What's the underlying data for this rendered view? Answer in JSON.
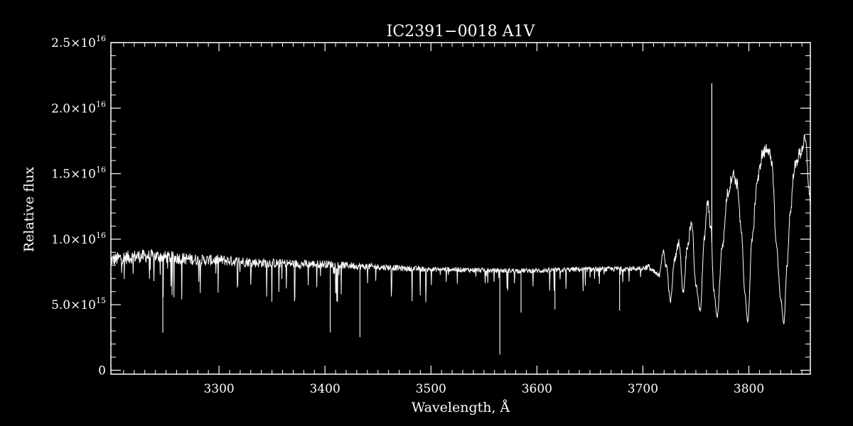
{
  "chart_data": {
    "type": "line",
    "title": "IC2391−0018  A1V",
    "xlabel": "Wavelength, Å",
    "ylabel": "Relative flux",
    "xlim": [
      3198,
      3858
    ],
    "ylim": [
      -300000000000000.0,
      2.5e+16
    ],
    "grid": false,
    "colors": {
      "background": "#000000",
      "foreground": "#ffffff",
      "series": "#ffffff"
    },
    "x_ticks": [
      {
        "value": 3300,
        "label": "3300"
      },
      {
        "value": 3400,
        "label": "3400"
      },
      {
        "value": 3500,
        "label": "3500"
      },
      {
        "value": 3600,
        "label": "3600"
      },
      {
        "value": 3700,
        "label": "3700"
      },
      {
        "value": 3800,
        "label": "3800"
      }
    ],
    "y_ticks": [
      {
        "value": 0,
        "mantissa": "0",
        "exponent": ""
      },
      {
        "value": 5000000000000000.0,
        "mantissa": "5.0×10",
        "exponent": "15"
      },
      {
        "value": 1e+16,
        "mantissa": "1.0×10",
        "exponent": "16"
      },
      {
        "value": 1.5e+16,
        "mantissa": "1.5×10",
        "exponent": "16"
      },
      {
        "value": 2e+16,
        "mantissa": "2.0×10",
        "exponent": "16"
      },
      {
        "value": 2.5e+16,
        "mantissa": "2.5×10",
        "exponent": "16"
      }
    ],
    "series": [
      {
        "x": [
          3198,
          3210,
          3225,
          3240,
          3255,
          3270,
          3285,
          3300,
          3320,
          3340,
          3360,
          3380,
          3400,
          3420,
          3440,
          3460,
          3480,
          3500,
          3520,
          3540,
          3560,
          3580,
          3600,
          3620,
          3640,
          3660,
          3680,
          3690,
          3700,
          3705,
          3710,
          3715,
          3719,
          3722,
          3726,
          3730,
          3734,
          3738,
          3742,
          3746,
          3750,
          3754,
          3758,
          3761,
          3764,
          3767,
          3770,
          3775,
          3780,
          3785,
          3789,
          3793,
          3796,
          3799,
          3803,
          3808,
          3813,
          3818,
          3822,
          3826,
          3830,
          3833,
          3836,
          3839,
          3843,
          3848,
          3853,
          3858
        ],
        "y": [
          8400000000000000.0,
          8600000000000000.0,
          8700000000000000.0,
          8700000000000000.0,
          8600000000000000.0,
          8500000000000000.0,
          8400000000000000.0,
          8400000000000000.0,
          8300000000000000.0,
          8200000000000000.0,
          8150000000000000.0,
          8100000000000000.0,
          8100000000000000.0,
          8000000000000000.0,
          7900000000000000.0,
          7850000000000000.0,
          7750000000000000.0,
          7700000000000000.0,
          7700000000000000.0,
          7650000000000000.0,
          7600000000000000.0,
          7600000000000000.0,
          7600000000000000.0,
          7650000000000000.0,
          7700000000000000.0,
          7700000000000000.0,
          7750000000000000.0,
          7750000000000000.0,
          7800000000000000.0,
          7900000000000000.0,
          7500000000000000.0,
          7200000000000000.0,
          9000000000000000.0,
          8000000000000000.0,
          5300000000000000.0,
          8500000000000000.0,
          9800000000000000.0,
          6000000000000000.0,
          9500000000000000.0,
          1.13e+16,
          6500000000000000.0,
          4500000000000000.0,
          1e+16,
          1.28e+16,
          1.1e+16,
          6000000000000000.0,
          4100000000000000.0,
          9500000000000000.0,
          1.35e+16,
          1.5e+16,
          1.42e+16,
          1.05e+16,
          6000000000000000.0,
          3700000000000000.0,
          1e+16,
          1.45e+16,
          1.65e+16,
          1.7e+16,
          1.55e+16,
          9500000000000000.0,
          5500000000000000.0,
          3500000000000000.0,
          8000000000000000.0,
          1.2e+16,
          1.55e+16,
          1.65e+16,
          1.75e+16,
          1.3e+16
        ]
      }
    ],
    "absorption_lines": [
      {
        "x": 3247,
        "depth": 5800000000000000.0
      },
      {
        "x": 3405,
        "depth": 5200000000000000.0
      },
      {
        "x": 3433,
        "depth": 5400000000000000.0
      },
      {
        "x": 3565,
        "depth": 6400000000000000.0
      },
      {
        "x": 3585,
        "depth": 3200000000000000.0
      },
      {
        "x": 3617,
        "depth": 3000000000000000.0
      },
      {
        "x": 3678,
        "depth": 3200000000000000.0
      }
    ],
    "emission_spikes": [
      {
        "x": 3765,
        "peak": 2.19e+16
      }
    ]
  }
}
